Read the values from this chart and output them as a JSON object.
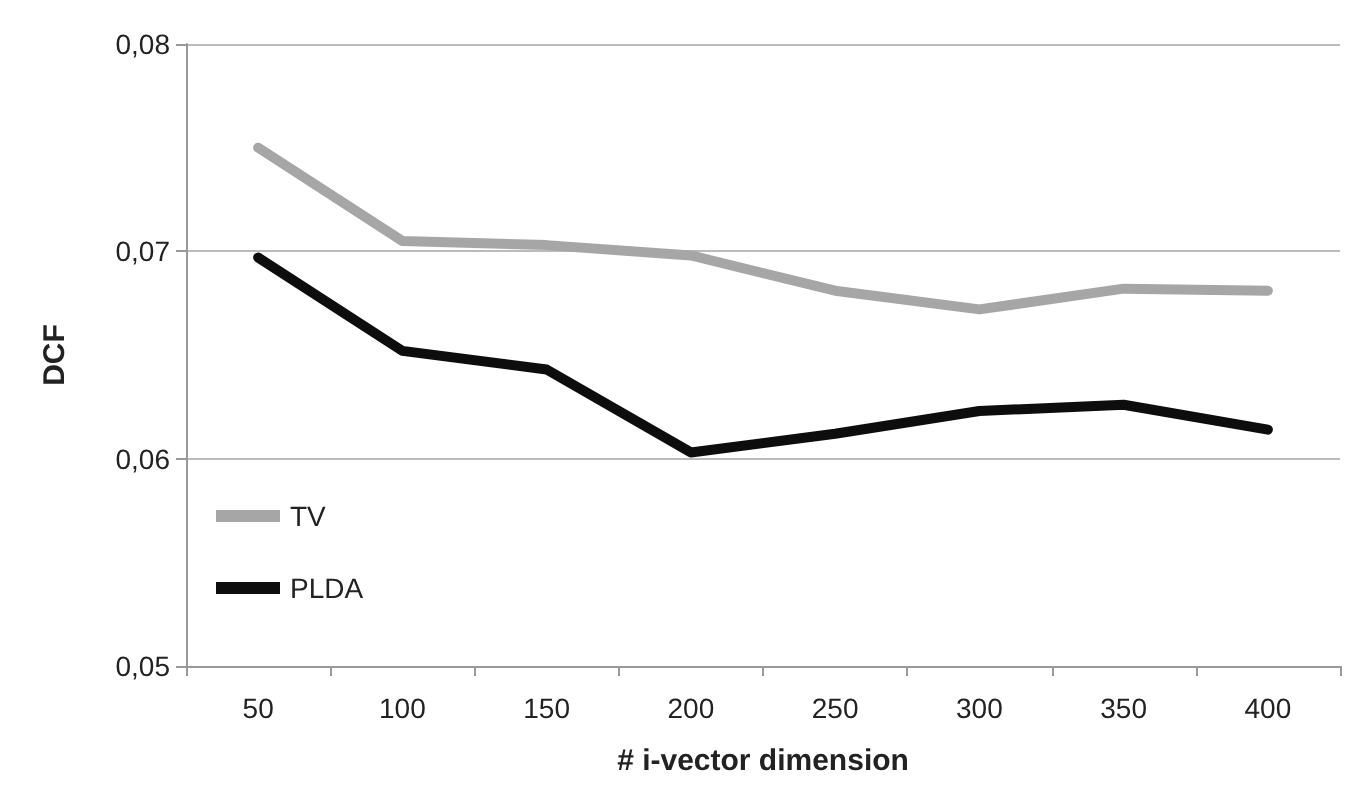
{
  "chart_data": {
    "type": "line",
    "xlabel": "# i-vector dimension",
    "ylabel": "DCF",
    "categories": [
      "50",
      "100",
      "150",
      "200",
      "250",
      "300",
      "350",
      "400"
    ],
    "series": [
      {
        "name": "TV",
        "color": "#a6a6a6",
        "values": [
          0.075,
          0.0705,
          0.0703,
          0.0698,
          0.0681,
          0.0672,
          0.0682,
          0.0681
        ]
      },
      {
        "name": "PLDA",
        "color": "#0d0d0d",
        "values": [
          0.0697,
          0.0652,
          0.0643,
          0.0603,
          0.0612,
          0.0623,
          0.0626,
          0.0614
        ]
      }
    ],
    "ylim": [
      0.05,
      0.08
    ],
    "yticks": [
      {
        "value": 0.05,
        "label": "0,05"
      },
      {
        "value": 0.06,
        "label": "0,06"
      },
      {
        "value": 0.07,
        "label": "0,07"
      },
      {
        "value": 0.08,
        "label": "0,08"
      }
    ],
    "grid": "y",
    "legend": "bottom left",
    "marker": "none",
    "line_style": "solid"
  }
}
